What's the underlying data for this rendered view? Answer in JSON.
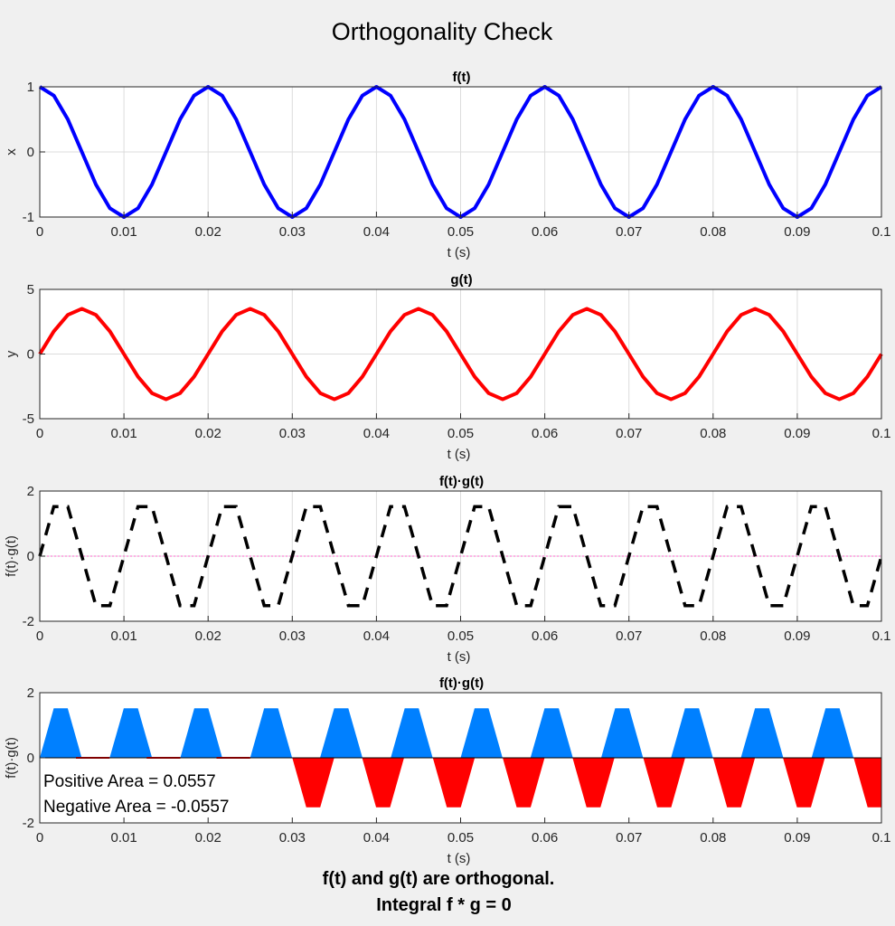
{
  "figure": {
    "title": "Orthogonality Check",
    "footer_line1": "f(t) and g(t) are orthogonal.",
    "footer_line2": "Integral f * g = 0"
  },
  "chart_data": [
    {
      "type": "line",
      "title": "f(t)",
      "xlabel": "t (s)",
      "ylabel": "x",
      "xlim": [
        0,
        0.1
      ],
      "ylim": [
        -1,
        1
      ],
      "xticks": [
        0,
        0.01,
        0.02,
        0.03,
        0.04,
        0.05,
        0.06,
        0.07,
        0.08,
        0.09,
        0.1
      ],
      "xtick_labels": [
        "0",
        "0.01",
        "0.02",
        "0.03",
        "0.04",
        "0.05",
        "0.06",
        "0.07",
        "0.08",
        "0.09",
        "0.1"
      ],
      "yticks": [
        -1,
        0,
        1
      ],
      "ytick_labels": [
        "-1",
        "0",
        "1"
      ],
      "grid": true,
      "series": [
        {
          "color": "#0000ff",
          "line_style": "solid",
          "x": [
            0,
            0.0016667,
            0.0033333,
            0.005,
            0.0066667,
            0.0083333,
            0.01,
            0.0116667,
            0.0133333,
            0.015,
            0.0166667,
            0.0183333,
            0.02,
            0.0216667,
            0.0233333,
            0.025,
            0.0266667,
            0.0283333,
            0.03,
            0.0316667,
            0.0333333,
            0.035,
            0.0366667,
            0.0383333,
            0.04,
            0.0416667,
            0.0433333,
            0.045,
            0.0466667,
            0.0483333,
            0.05,
            0.0516667,
            0.0533333,
            0.055,
            0.0566667,
            0.0583333,
            0.06,
            0.0616667,
            0.0633333,
            0.065,
            0.0666667,
            0.0683333,
            0.07,
            0.0716667,
            0.0733333,
            0.075,
            0.0766667,
            0.0783333,
            0.08,
            0.0816667,
            0.0833333,
            0.085,
            0.0866667,
            0.0883333,
            0.09,
            0.0916667,
            0.0933333,
            0.095,
            0.0966667,
            0.0983333,
            0.1
          ],
          "y": [
            1,
            0.866,
            0.5,
            0,
            -0.5,
            -0.866,
            -1,
            -0.866,
            -0.5,
            0,
            0.5,
            0.866,
            1,
            0.866,
            0.5,
            0,
            -0.5,
            -0.866,
            -1,
            -0.866,
            -0.5,
            0,
            0.5,
            0.866,
            1,
            0.866,
            0.5,
            0,
            -0.5,
            -0.866,
            -1,
            -0.866,
            -0.5,
            0,
            0.5,
            0.866,
            1,
            0.866,
            0.5,
            0,
            -0.5,
            -0.866,
            -1,
            -0.866,
            -0.5,
            0,
            0.5,
            0.866,
            1,
            0.866,
            0.5,
            0,
            -0.5,
            -0.866,
            -1,
            -0.866,
            -0.5,
            0,
            0.5,
            0.866,
            1
          ]
        }
      ]
    },
    {
      "type": "line",
      "title": "g(t)",
      "xlabel": "t (s)",
      "ylabel": "y",
      "xlim": [
        0,
        0.1
      ],
      "ylim": [
        -5,
        5
      ],
      "xticks": [
        0,
        0.01,
        0.02,
        0.03,
        0.04,
        0.05,
        0.06,
        0.07,
        0.08,
        0.09,
        0.1
      ],
      "xtick_labels": [
        "0",
        "0.01",
        "0.02",
        "0.03",
        "0.04",
        "0.05",
        "0.06",
        "0.07",
        "0.08",
        "0.09",
        "0.1"
      ],
      "yticks": [
        -5,
        0,
        5
      ],
      "ytick_labels": [
        "-5",
        "0",
        "5"
      ],
      "grid": true,
      "series": [
        {
          "color": "#ff0000",
          "line_style": "solid",
          "x": [
            0,
            0.0016667,
            0.0033333,
            0.005,
            0.0066667,
            0.0083333,
            0.01,
            0.0116667,
            0.0133333,
            0.015,
            0.0166667,
            0.0183333,
            0.02,
            0.0216667,
            0.0233333,
            0.025,
            0.0266667,
            0.0283333,
            0.03,
            0.0316667,
            0.0333333,
            0.035,
            0.0366667,
            0.0383333,
            0.04,
            0.0416667,
            0.0433333,
            0.045,
            0.0466667,
            0.0483333,
            0.05,
            0.0516667,
            0.0533333,
            0.055,
            0.0566667,
            0.0583333,
            0.06,
            0.0616667,
            0.0633333,
            0.065,
            0.0666667,
            0.0683333,
            0.07,
            0.0716667,
            0.0733333,
            0.075,
            0.0766667,
            0.0783333,
            0.08,
            0.0816667,
            0.0833333,
            0.085,
            0.0866667,
            0.0883333,
            0.09,
            0.0916667,
            0.0933333,
            0.095,
            0.0966667,
            0.0983333,
            0.1
          ],
          "y": [
            0,
            1.75,
            3.03,
            3.5,
            3.03,
            1.75,
            0,
            -1.75,
            -3.03,
            -3.5,
            -3.03,
            -1.75,
            0,
            1.75,
            3.03,
            3.5,
            3.03,
            1.75,
            0,
            -1.75,
            -3.03,
            -3.5,
            -3.03,
            -1.75,
            0,
            1.75,
            3.03,
            3.5,
            3.03,
            1.75,
            0,
            -1.75,
            -3.03,
            -3.5,
            -3.03,
            -1.75,
            0,
            1.75,
            3.03,
            3.5,
            3.03,
            1.75,
            0,
            -1.75,
            -3.03,
            -3.5,
            -3.03,
            -1.75,
            0,
            1.75,
            3.03,
            3.5,
            3.03,
            1.75,
            0,
            -1.75,
            -3.03,
            -3.5,
            -3.03,
            -1.75,
            0
          ]
        }
      ]
    },
    {
      "type": "line",
      "title": "f(t)·g(t)",
      "xlabel": "t (s)",
      "ylabel": "f(t)·g(t)",
      "xlim": [
        0,
        0.1
      ],
      "ylim": [
        -2,
        2
      ],
      "xticks": [
        0,
        0.01,
        0.02,
        0.03,
        0.04,
        0.05,
        0.06,
        0.07,
        0.08,
        0.09,
        0.1
      ],
      "xtick_labels": [
        "0",
        "0.01",
        "0.02",
        "0.03",
        "0.04",
        "0.05",
        "0.06",
        "0.07",
        "0.08",
        "0.09",
        "0.1"
      ],
      "yticks": [
        -2,
        0,
        2
      ],
      "ytick_labels": [
        "-2",
        "0",
        "2"
      ],
      "grid": true,
      "reference_line": {
        "y": 0,
        "color": "#ff66cc",
        "line_style": "dotted"
      },
      "series": [
        {
          "color": "#000000",
          "line_style": "dashed",
          "x": [
            0,
            0.0016667,
            0.0033333,
            0.005,
            0.0066667,
            0.0083333,
            0.01,
            0.0116667,
            0.0133333,
            0.015,
            0.0166667,
            0.0183333,
            0.02,
            0.0216667,
            0.0233333,
            0.025,
            0.0266667,
            0.0283333,
            0.03,
            0.0316667,
            0.0333333,
            0.035,
            0.0366667,
            0.0383333,
            0.04,
            0.0416667,
            0.0433333,
            0.045,
            0.0466667,
            0.0483333,
            0.05,
            0.0516667,
            0.0533333,
            0.055,
            0.0566667,
            0.0583333,
            0.06,
            0.0616667,
            0.0633333,
            0.065,
            0.0666667,
            0.0683333,
            0.07,
            0.0716667,
            0.0733333,
            0.075,
            0.0766667,
            0.0783333,
            0.08,
            0.0816667,
            0.0833333,
            0.085,
            0.0866667,
            0.0883333,
            0.09,
            0.0916667,
            0.0933333,
            0.095,
            0.0966667,
            0.0983333,
            0.1
          ],
          "y": [
            0,
            1.52,
            1.52,
            0,
            -1.52,
            -1.52,
            0,
            1.52,
            1.52,
            0,
            -1.52,
            -1.52,
            0,
            1.52,
            1.52,
            0,
            -1.52,
            -1.52,
            0,
            1.52,
            1.52,
            0,
            -1.52,
            -1.52,
            0,
            1.52,
            1.52,
            0,
            -1.52,
            -1.52,
            0,
            1.52,
            1.52,
            0,
            -1.52,
            -1.52,
            0,
            1.52,
            1.52,
            0,
            -1.52,
            -1.52,
            0,
            1.52,
            1.52,
            0,
            -1.52,
            -1.52,
            0,
            1.52,
            1.52,
            0,
            -1.52,
            -1.52,
            0,
            1.52,
            1.52,
            0,
            -1.52,
            -1.52,
            0
          ]
        }
      ]
    },
    {
      "type": "area",
      "title": "f(t)·g(t)",
      "xlabel": "t (s)",
      "ylabel": "f(t)·g(t)",
      "xlim": [
        0,
        0.1
      ],
      "ylim": [
        -2,
        2
      ],
      "xticks": [
        0,
        0.01,
        0.02,
        0.03,
        0.04,
        0.05,
        0.06,
        0.07,
        0.08,
        0.09,
        0.1
      ],
      "xtick_labels": [
        "0",
        "0.01",
        "0.02",
        "0.03",
        "0.04",
        "0.05",
        "0.06",
        "0.07",
        "0.08",
        "0.09",
        "0.1"
      ],
      "yticks": [
        -2,
        0,
        2
      ],
      "ytick_labels": [
        "-2",
        "0",
        "2"
      ],
      "grid": false,
      "positive_color": "#0080ff",
      "negative_color": "#ff0000",
      "annotations": [
        "Positive Area = 0.0557",
        "Negative Area = -0.0557"
      ],
      "positive_lobes": [
        [
          0.0,
          0.0083
        ],
        [
          0.0083,
          0.0167
        ],
        [
          0.0167,
          0.025
        ],
        [
          0.025,
          0.0333
        ],
        [
          0.0333,
          0.0417
        ],
        [
          0.0417,
          0.05
        ],
        [
          0.05,
          0.0583
        ],
        [
          0.0583,
          0.0667
        ],
        [
          0.0667,
          0.075
        ],
        [
          0.075,
          0.0833
        ],
        [
          0.0833,
          0.0917
        ],
        [
          0.0917,
          0.1
        ]
      ],
      "negative_lobes": [
        [
          0.03,
          0.0383
        ],
        [
          0.0383,
          0.0467
        ],
        [
          0.0467,
          0.055
        ],
        [
          0.055,
          0.0633
        ],
        [
          0.0633,
          0.0717
        ],
        [
          0.0717,
          0.08
        ],
        [
          0.08,
          0.0883
        ],
        [
          0.0883,
          0.0967
        ],
        [
          0.0967,
          0.1
        ]
      ],
      "negative_flat_segments": [
        [
          0.0043,
          0.0083
        ],
        [
          0.0127,
          0.0167
        ],
        [
          0.021,
          0.025
        ]
      ],
      "lobe_peak": 1.52
    }
  ]
}
